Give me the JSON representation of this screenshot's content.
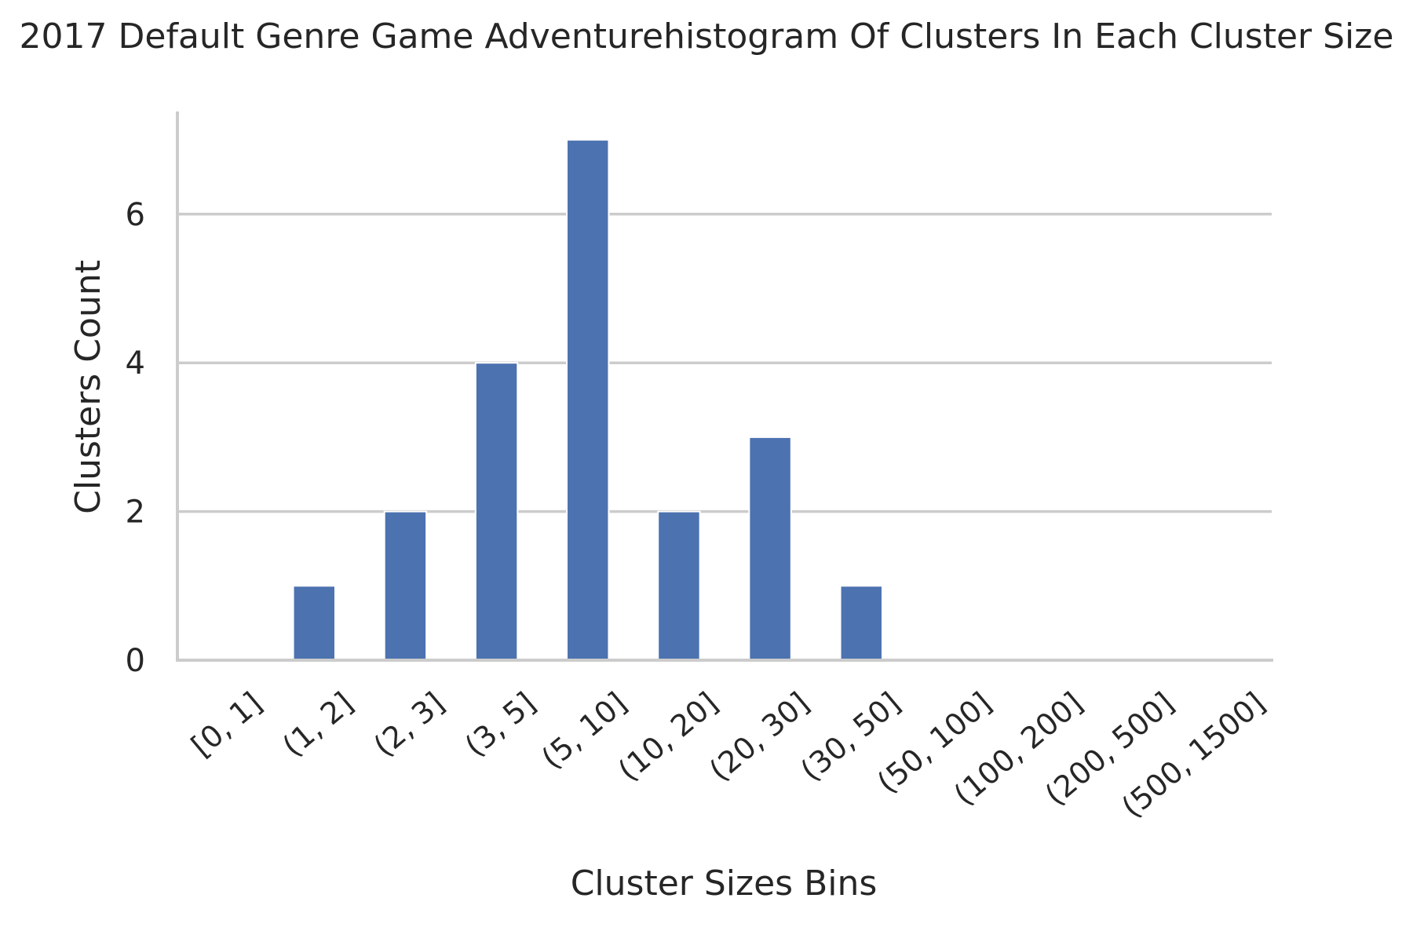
{
  "chart_data": {
    "type": "bar",
    "title": "2017 Default Genre Game Adventurehistogram Of Clusters In Each Cluster Size",
    "xlabel": "Cluster Sizes Bins",
    "ylabel": "Clusters Count",
    "categories": [
      "[0, 1]",
      "(1, 2]",
      "(2, 3]",
      "(3, 5]",
      "(5, 10]",
      "(10, 20]",
      "(20, 30]",
      "(30, 50]",
      "(50, 100]",
      "(100, 200]",
      "(200, 500]",
      "(500, 1500]"
    ],
    "values": [
      0,
      1,
      2,
      4,
      7,
      2,
      3,
      1,
      0,
      0,
      0,
      0
    ],
    "yticks": [
      0,
      2,
      4,
      6
    ],
    "ylim": [
      0,
      7.35
    ],
    "grid": "horizontal",
    "color": "#4c72b0",
    "legend": "none"
  }
}
